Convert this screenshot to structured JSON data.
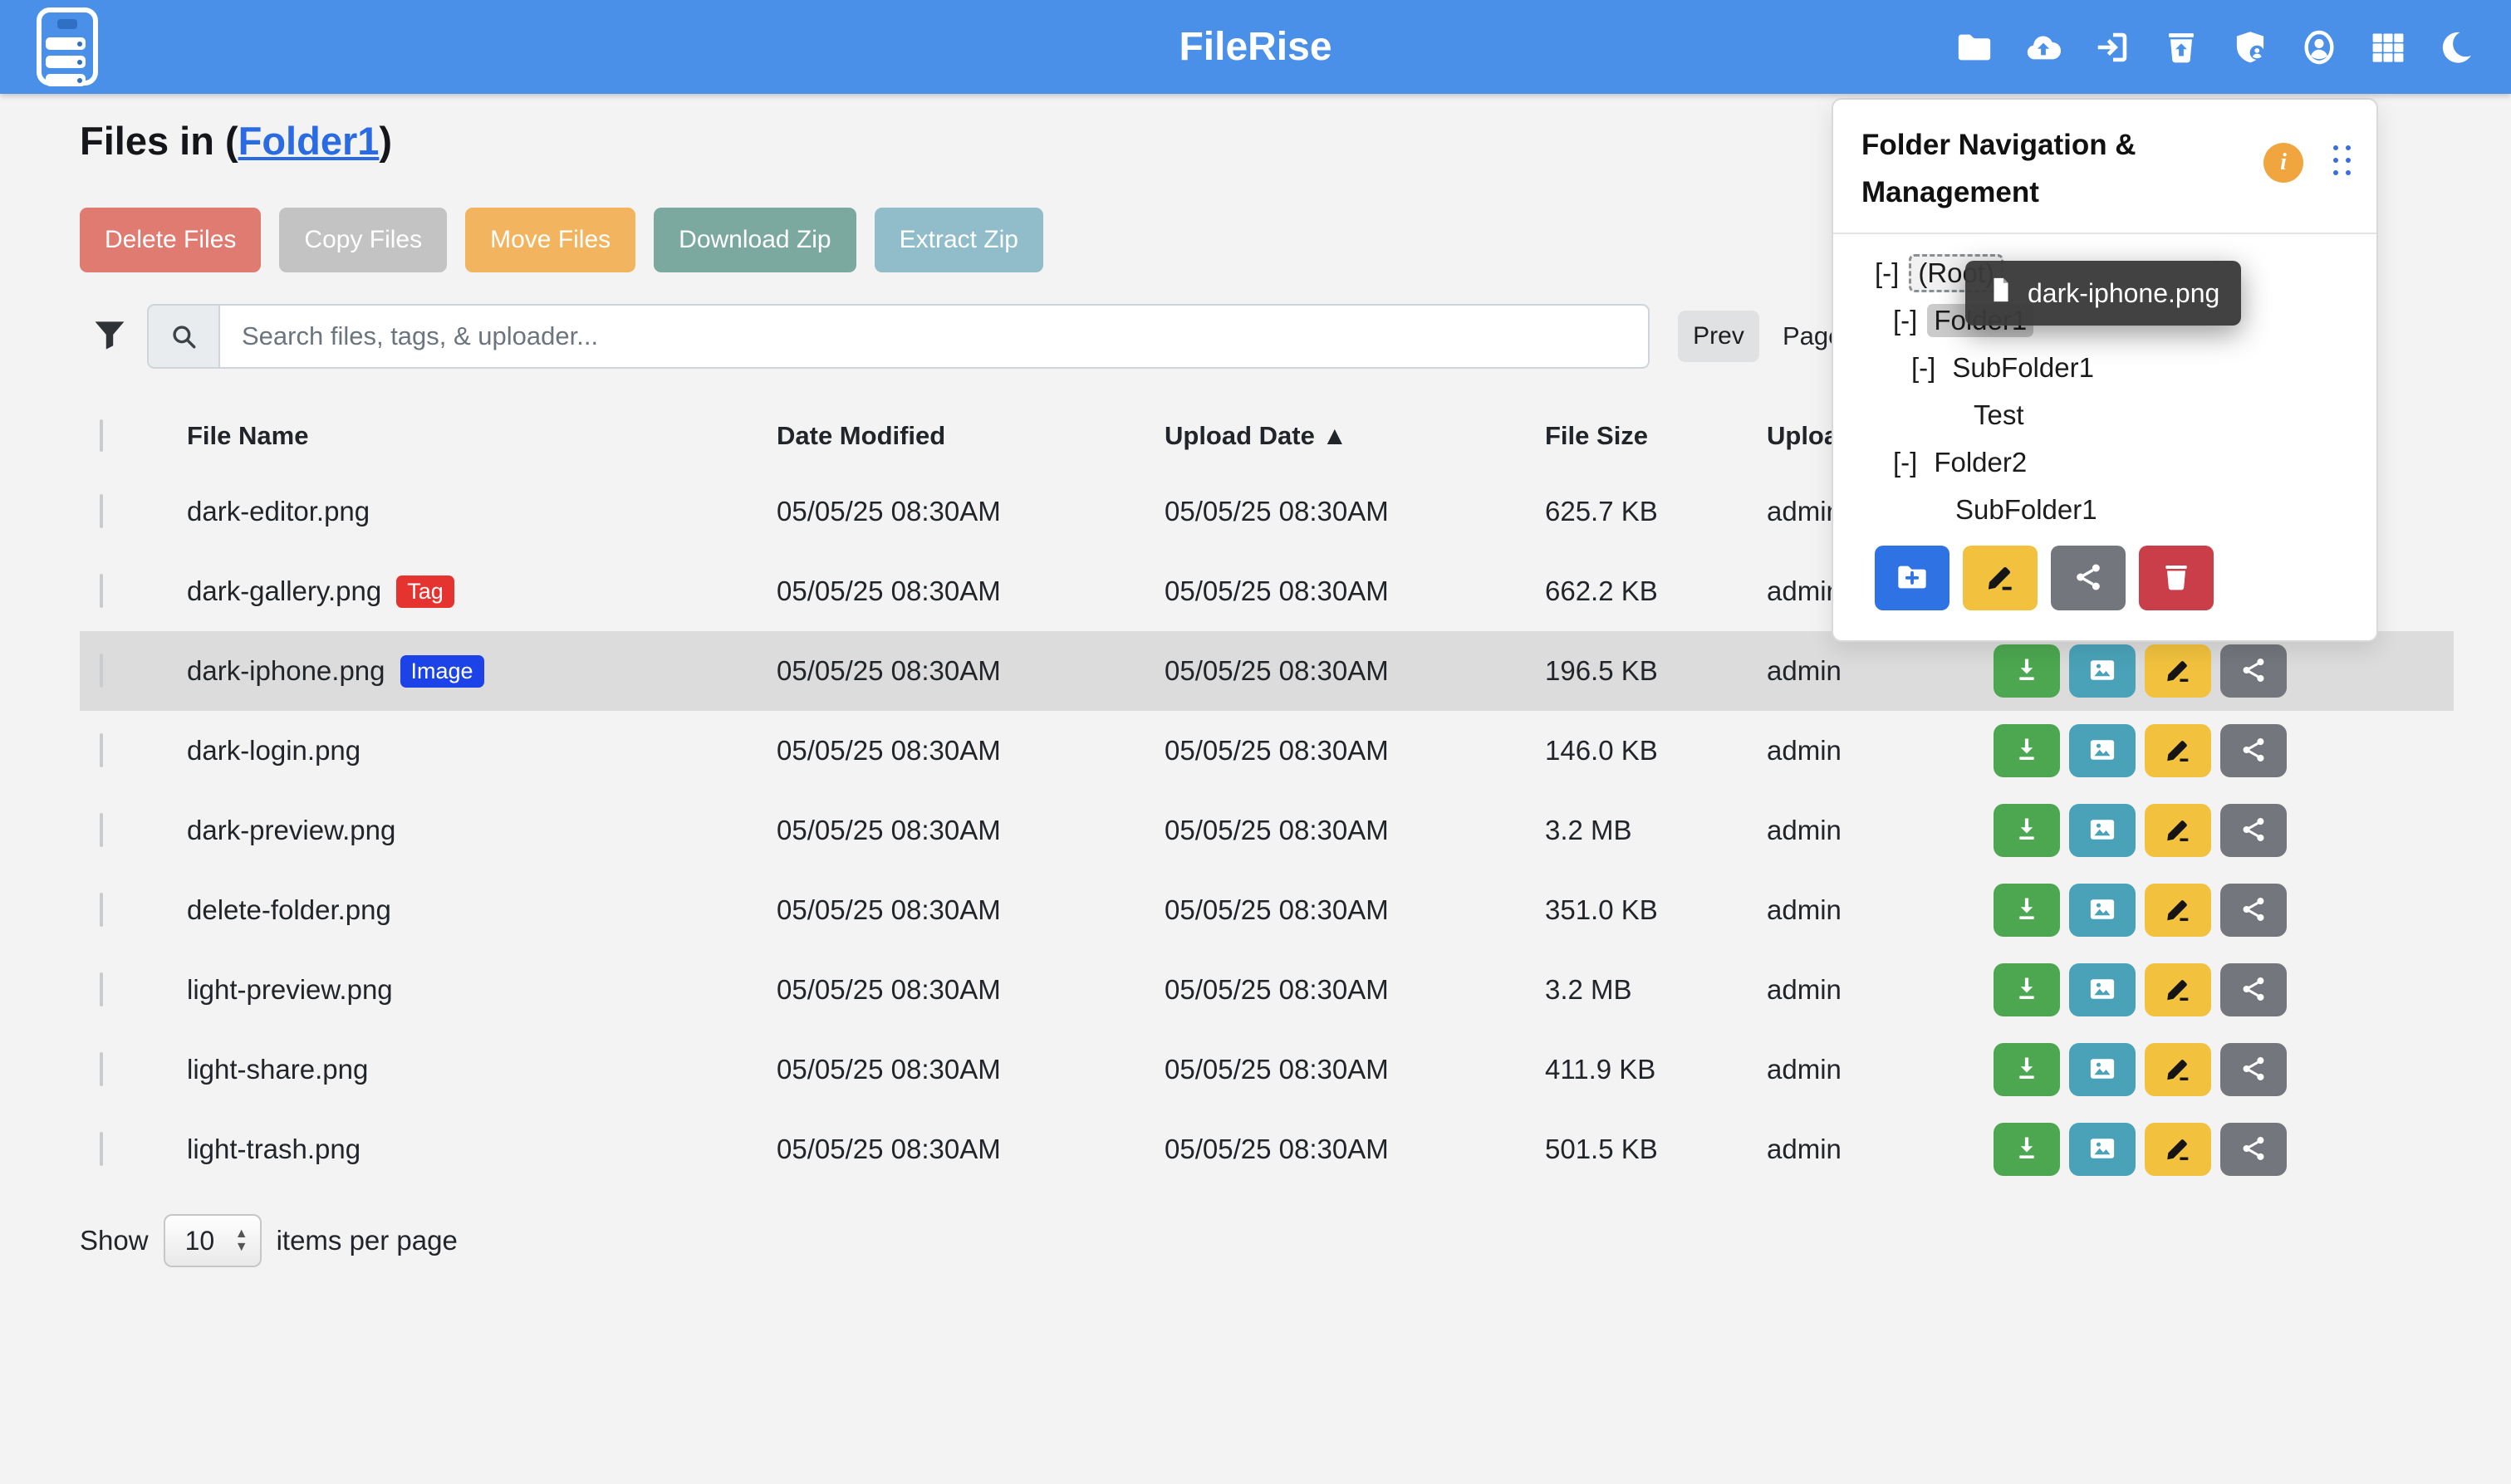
{
  "header": {
    "title": "FileRise",
    "icons": [
      {
        "icon": "folder-icon"
      },
      {
        "icon": "cloud-upload-icon"
      },
      {
        "icon": "sign-out-icon"
      },
      {
        "icon": "trash-restore-icon"
      },
      {
        "icon": "user-shield-icon"
      },
      {
        "icon": "profile-icon"
      },
      {
        "icon": "grid-icon"
      },
      {
        "icon": "moon-icon"
      }
    ]
  },
  "page": {
    "heading_prefix": "Files in (",
    "folder_link": "Folder1",
    "heading_suffix": ")"
  },
  "toolbar": {
    "buttons": [
      {
        "label": "Delete Files",
        "color": "#df7b70"
      },
      {
        "label": "Copy Files",
        "color": "#c3c3c3"
      },
      {
        "label": "Move Files",
        "color": "#f2b45f"
      },
      {
        "label": "Download Zip",
        "color": "#7ca99f"
      },
      {
        "label": "Extract Zip",
        "color": "#90bdc9"
      }
    ]
  },
  "search": {
    "placeholder": "Search files, tags, & uploader...",
    "prev_label": "Prev",
    "page_label": "Page"
  },
  "table": {
    "headers": {
      "file_name": "File Name",
      "date_modified": "Date Modified",
      "upload_date": "Upload Date ▲",
      "file_size": "File Size",
      "uploader": "Uploader"
    },
    "row_actions": [
      {
        "icon": "download-icon",
        "color": "#4ca750"
      },
      {
        "icon": "image-preview-icon",
        "color": "#4aa2b8"
      },
      {
        "icon": "edit-icon",
        "color": "#f2c23e"
      },
      {
        "icon": "share-icon",
        "color": "#73777d"
      }
    ],
    "rows": [
      {
        "name": "dark-editor.png",
        "badge": null,
        "modified": "05/05/25 08:30AM",
        "uploaded": "05/05/25 08:30AM",
        "size": "625.7 KB",
        "uploader": "admin",
        "highlight": false
      },
      {
        "name": "dark-gallery.png",
        "badge": {
          "label": "Tag",
          "color": "#e53430"
        },
        "modified": "05/05/25 08:30AM",
        "uploaded": "05/05/25 08:30AM",
        "size": "662.2 KB",
        "uploader": "admin",
        "highlight": false
      },
      {
        "name": "dark-iphone.png",
        "badge": {
          "label": "Image",
          "color": "#1c43e8"
        },
        "modified": "05/05/25 08:30AM",
        "uploaded": "05/05/25 08:30AM",
        "size": "196.5 KB",
        "uploader": "admin",
        "highlight": true
      },
      {
        "name": "dark-login.png",
        "badge": null,
        "modified": "05/05/25 08:30AM",
        "uploaded": "05/05/25 08:30AM",
        "size": "146.0 KB",
        "uploader": "admin",
        "highlight": false
      },
      {
        "name": "dark-preview.png",
        "badge": null,
        "modified": "05/05/25 08:30AM",
        "uploaded": "05/05/25 08:30AM",
        "size": "3.2 MB",
        "uploader": "admin",
        "highlight": false
      },
      {
        "name": "delete-folder.png",
        "badge": null,
        "modified": "05/05/25 08:30AM",
        "uploaded": "05/05/25 08:30AM",
        "size": "351.0 KB",
        "uploader": "admin",
        "highlight": false
      },
      {
        "name": "light-preview.png",
        "badge": null,
        "modified": "05/05/25 08:30AM",
        "uploaded": "05/05/25 08:30AM",
        "size": "3.2 MB",
        "uploader": "admin",
        "highlight": false
      },
      {
        "name": "light-share.png",
        "badge": null,
        "modified": "05/05/25 08:30AM",
        "uploaded": "05/05/25 08:30AM",
        "size": "411.9 KB",
        "uploader": "admin",
        "highlight": false
      },
      {
        "name": "light-trash.png",
        "badge": null,
        "modified": "05/05/25 08:30AM",
        "uploaded": "05/05/25 08:30AM",
        "size": "501.5 KB",
        "uploader": "admin",
        "highlight": false
      }
    ]
  },
  "pagination": {
    "show_label": "Show",
    "per_page": "10",
    "suffix_label": "items per page"
  },
  "panel": {
    "title_line1": "Folder Navigation &",
    "title_line2": "Management",
    "info_glyph": "i",
    "tree": [
      {
        "toggle": "[-]",
        "label": "(Root)",
        "level": 0,
        "style": "drop-target"
      },
      {
        "toggle": "[-]",
        "label": "Folder1",
        "level": 1,
        "style": "selected"
      },
      {
        "toggle": "[-]",
        "label": "SubFolder1",
        "level": 2,
        "style": ""
      },
      {
        "toggle": "",
        "label": "Test",
        "level": 3,
        "style": ""
      },
      {
        "toggle": "[-]",
        "label": "Folder2",
        "level": 1,
        "style": ""
      },
      {
        "toggle": "",
        "label": "SubFolder1",
        "level": 2,
        "style": ""
      }
    ],
    "buttons": [
      {
        "icon": "folder-plus-icon",
        "color": "#2f72e4"
      },
      {
        "icon": "edit-icon",
        "color": "#f2c23e"
      },
      {
        "icon": "share-icon",
        "color": "#73777d"
      },
      {
        "icon": "trash-icon",
        "color": "#ca3e49"
      }
    ]
  },
  "drag_tooltip": {
    "label": "dark-iphone.png"
  },
  "colors": {
    "header_bg": "#4a8fe8",
    "row_highlight": "#dcdcdc",
    "link": "#2a6be4",
    "info_orange": "#f0a53f"
  }
}
